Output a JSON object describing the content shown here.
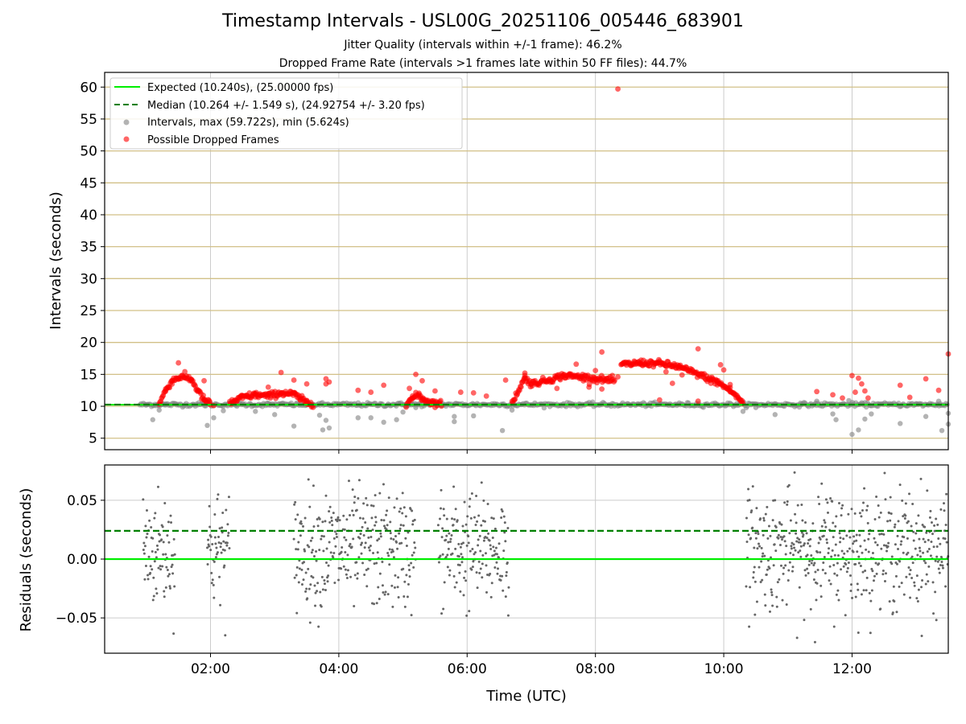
{
  "chart_data": [
    {
      "type": "scatter",
      "title": "Timestamp Intervals - USL00G_20251106_005446_683901",
      "subtitle_1": "Jitter Quality (intervals within +/-1 frame): 46.2%",
      "subtitle_2": "Dropped Frame Rate (intervals >1 frames late within 50 FF files): 44.7%",
      "ylabel": "Intervals (seconds)",
      "xlabel": "",
      "x_unit": "hours UTC",
      "xlim": [
        0.35,
        13.5
      ],
      "ylim": [
        3.2,
        62.3
      ],
      "yticks": [
        5,
        10,
        15,
        20,
        25,
        30,
        35,
        40,
        45,
        50,
        55,
        60
      ],
      "ytick_labels": [
        "5",
        "10",
        "15",
        "20",
        "25",
        "30",
        "35",
        "40",
        "45",
        "50",
        "55",
        "60"
      ],
      "grid": true,
      "legend_position": "top-left",
      "legend": [
        "Expected (10.240s), (25.00000 fps)",
        "Median (10.264 +/- 1.549 s), (24.92754 +/- 3.20 fps)",
        "Intervals, max (59.722s), min (5.624s)",
        "Possible Dropped Frames"
      ],
      "expected_interval": 10.24,
      "median_interval": 10.264,
      "series": [
        {
          "name": "Possible Dropped Frames (curve segments, approx.)",
          "segments": [
            [
              [
                1.2,
                10.4
              ],
              [
                1.3,
                12.5
              ],
              [
                1.4,
                14.0
              ],
              [
                1.5,
                14.5
              ],
              [
                1.6,
                14.6
              ],
              [
                1.7,
                14.2
              ],
              [
                1.8,
                12.5
              ],
              [
                1.9,
                11.0
              ],
              [
                2.0,
                10.4
              ]
            ],
            [
              [
                2.3,
                10.5
              ],
              [
                2.5,
                11.4
              ],
              [
                2.7,
                11.8
              ],
              [
                2.9,
                11.6
              ],
              [
                3.1,
                12.1
              ],
              [
                3.3,
                11.9
              ],
              [
                3.4,
                11.2
              ],
              [
                3.5,
                10.6
              ],
              [
                3.6,
                10.4
              ]
            ],
            [
              [
                5.05,
                10.5
              ],
              [
                5.15,
                11.3
              ],
              [
                5.25,
                11.8
              ],
              [
                5.3,
                11.2
              ],
              [
                5.45,
                10.6
              ],
              [
                5.6,
                10.4
              ]
            ],
            [
              [
                6.7,
                10.5
              ],
              [
                6.9,
                14.5
              ],
              [
                7.0,
                13.5
              ],
              [
                7.3,
                14.2
              ],
              [
                7.5,
                14.8
              ],
              [
                7.8,
                14.6
              ],
              [
                8.0,
                14.3
              ],
              [
                8.3,
                14.0
              ]
            ],
            [
              [
                8.4,
                16.5
              ],
              [
                8.7,
                16.8
              ],
              [
                9.0,
                16.7
              ],
              [
                9.3,
                16.2
              ],
              [
                9.6,
                15.0
              ],
              [
                9.9,
                13.8
              ],
              [
                10.1,
                12.5
              ],
              [
                10.3,
                10.6
              ]
            ]
          ]
        },
        {
          "name": "Possible Dropped Frames (scattered outliers, approx.)",
          "points": [
            [
              1.5,
              16.8
            ],
            [
              1.7,
              14.2
            ],
            [
              1.9,
              14.0
            ],
            [
              2.05,
              10.1
            ],
            [
              2.9,
              13.0
            ],
            [
              3.1,
              15.3
            ],
            [
              3.3,
              14.1
            ],
            [
              3.5,
              13.5
            ],
            [
              3.8,
              14.3
            ],
            [
              3.85,
              13.8
            ],
            [
              3.8,
              13.5
            ],
            [
              4.3,
              12.5
            ],
            [
              4.5,
              12.2
            ],
            [
              4.7,
              13.3
            ],
            [
              5.1,
              12.8
            ],
            [
              5.2,
              15.0
            ],
            [
              5.3,
              14.0
            ],
            [
              5.5,
              12.4
            ],
            [
              5.9,
              12.2
            ],
            [
              6.1,
              12.1
            ],
            [
              6.3,
              11.6
            ],
            [
              6.6,
              14.1
            ],
            [
              6.9,
              15.2
            ],
            [
              7.4,
              12.8
            ],
            [
              7.6,
              15.0
            ],
            [
              7.7,
              16.6
            ],
            [
              7.9,
              13.0
            ],
            [
              8.0,
              15.6
            ],
            [
              8.1,
              18.5
            ],
            [
              8.1,
              12.7
            ],
            [
              8.35,
              14.6
            ],
            [
              8.35,
              59.7
            ],
            [
              9.0,
              11.0
            ],
            [
              9.1,
              15.4
            ],
            [
              9.2,
              13.6
            ],
            [
              9.35,
              14.9
            ],
            [
              9.6,
              10.8
            ],
            [
              9.6,
              19.0
            ],
            [
              9.8,
              13.6
            ],
            [
              9.95,
              16.5
            ],
            [
              10.0,
              15.7
            ],
            [
              10.1,
              13.4
            ],
            [
              11.45,
              12.3
            ],
            [
              11.7,
              11.8
            ],
            [
              11.85,
              11.3
            ],
            [
              12.0,
              14.8
            ],
            [
              12.05,
              12.2
            ],
            [
              12.1,
              14.4
            ],
            [
              12.15,
              13.5
            ],
            [
              12.2,
              12.4
            ],
            [
              12.25,
              11.3
            ],
            [
              12.75,
              13.3
            ],
            [
              12.9,
              11.4
            ],
            [
              13.15,
              14.3
            ],
            [
              13.35,
              12.5
            ],
            [
              13.5,
              18.2
            ]
          ]
        },
        {
          "name": "Intervals (gray, approx. outliers)",
          "points": [
            [
              1.0,
              10.2
            ],
            [
              1.1,
              7.9
            ],
            [
              1.2,
              9.4
            ],
            [
              1.3,
              10.2
            ],
            [
              1.95,
              7.0
            ],
            [
              2.05,
              8.2
            ],
            [
              2.2,
              9.3
            ],
            [
              2.7,
              9.2
            ],
            [
              2.9,
              10.2
            ],
            [
              3.0,
              8.7
            ],
            [
              3.3,
              6.9
            ],
            [
              3.6,
              10.3
            ],
            [
              3.75,
              6.3
            ],
            [
              3.8,
              7.8
            ],
            [
              3.85,
              6.6
            ],
            [
              3.7,
              8.6
            ],
            [
              4.3,
              8.2
            ],
            [
              4.5,
              8.2
            ],
            [
              4.7,
              7.5
            ],
            [
              4.9,
              7.9
            ],
            [
              5.0,
              9.1
            ],
            [
              5.2,
              9.8
            ],
            [
              5.6,
              10.2
            ],
            [
              5.8,
              8.4
            ],
            [
              5.8,
              7.6
            ],
            [
              6.1,
              8.5
            ],
            [
              6.55,
              6.2
            ],
            [
              6.7,
              9.4
            ],
            [
              10.3,
              9.2
            ],
            [
              10.5,
              9.8
            ],
            [
              10.8,
              8.7
            ],
            [
              11.2,
              10.3
            ],
            [
              11.45,
              10.8
            ],
            [
              11.7,
              8.8
            ],
            [
              11.75,
              7.9
            ],
            [
              11.95,
              10.9
            ],
            [
              12.0,
              5.6
            ],
            [
              12.1,
              6.3
            ],
            [
              12.2,
              8.0
            ],
            [
              12.3,
              8.8
            ],
            [
              12.4,
              10.4
            ],
            [
              12.75,
              7.3
            ],
            [
              13.0,
              10.3
            ],
            [
              13.15,
              8.4
            ],
            [
              13.4,
              6.2
            ],
            [
              13.5,
              7.2
            ],
            [
              13.5,
              8.9
            ],
            [
              13.35,
              10.8
            ]
          ]
        }
      ],
      "x_range_gray_baseline": [
        0.9,
        13.5
      ]
    },
    {
      "type": "scatter",
      "ylabel": "Residuals (seconds)",
      "xlabel": "Time (UTC)",
      "xlim": [
        0.35,
        13.5
      ],
      "ylim": [
        -0.08,
        0.08
      ],
      "yticks": [
        -0.05,
        0.0,
        0.05
      ],
      "ytick_labels": [
        "−0.05",
        "0.00",
        "0.05"
      ],
      "xticks": [
        2,
        4,
        6,
        8,
        10,
        12
      ],
      "xtick_labels": [
        "02:00",
        "04:00",
        "06:00",
        "08:00",
        "10:00",
        "12:00"
      ],
      "grid": true,
      "expected_residual": 0.0,
      "median_residual": 0.024,
      "residual_clusters_hours": [
        [
          0.95,
          1.45
        ],
        [
          1.95,
          2.3
        ],
        [
          3.3,
          4.95
        ],
        [
          4.95,
          5.2
        ],
        [
          5.55,
          6.65
        ],
        [
          10.35,
          13.5
        ]
      ],
      "residual_spread_sigma": 0.025
    }
  ],
  "colors": {
    "expected": "#00ee00",
    "median": "#007f00",
    "intervals": "#808080",
    "dropped": "#ff0000",
    "hgrid": "#d2c088",
    "grid": "#cccccc",
    "residual_points": "#666666"
  }
}
